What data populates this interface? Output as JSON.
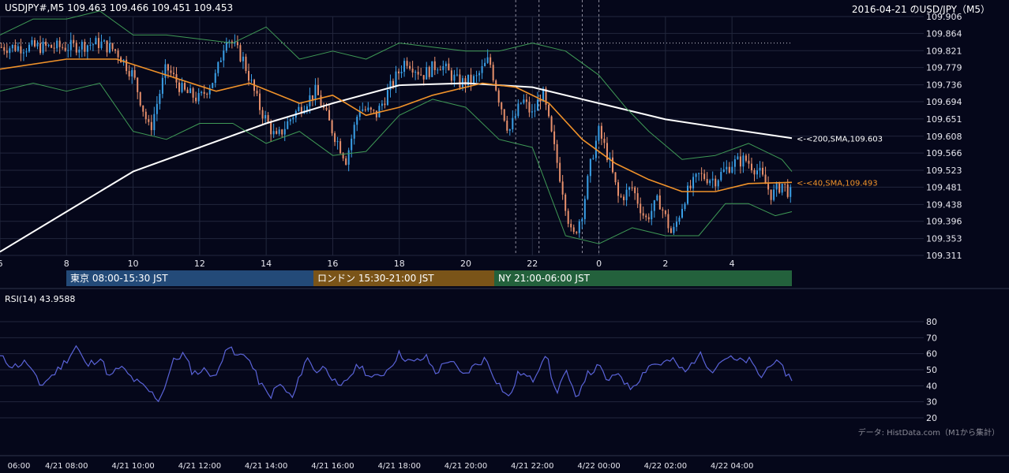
{
  "header": {
    "symbol_line": "USDJPY#,M5 109.463 109.466 109.451 109.453",
    "date_line": "2016-04-21 のUSD/JPY（M5）"
  },
  "sessions": [
    {
      "label": "東京 08:00-15:30 JST",
      "color": "#234a78"
    },
    {
      "label": "ロンドン 15:30-21:00 JST",
      "color": "#7a5418"
    },
    {
      "label": "NY 21:00-06:00 JST",
      "color": "#23613c"
    }
  ],
  "rsi_label": "RSI(14) 43.9588",
  "credit": "データ: HistData.com（M1から集計）",
  "colors": {
    "background": "#05071a",
    "bull": "#3aa0e8",
    "bear": "#e8906c",
    "sma40": "#f0922a",
    "sma200": "#ffffff",
    "bollinger": "#3f9a56",
    "rsi": "#5a63d8",
    "grid": "#22273d"
  },
  "chart_data": [
    {
      "type": "candlestick",
      "title": "USD/JPY M5",
      "y_ticks": [
        "109.906",
        "109.864",
        "109.821",
        "109.779",
        "109.736",
        "109.694",
        "109.651",
        "109.608",
        "109.566",
        "109.523",
        "109.481",
        "109.438",
        "109.396",
        "109.353",
        "109.311"
      ],
      "ylim": [
        109.311,
        109.906
      ],
      "x_ticks": [
        "6",
        "8",
        "10",
        "12",
        "14",
        "16",
        "18",
        "20",
        "22",
        "0",
        "2",
        "4"
      ],
      "x_range_hours": [
        6,
        29.8
      ],
      "time_axis_labels": [
        "06:00",
        "4/21 08:00",
        "4/21 10:00",
        "4/21 12:00",
        "4/21 14:00",
        "4/21 16:00",
        "4/21 18:00",
        "4/21 20:00",
        "4/21 22:00",
        "4/22 00:00",
        "4/22 02:00",
        "4/22 04:00"
      ],
      "reference_line": 109.84,
      "event_lines_hours": [
        21.5,
        22.2,
        23.5,
        24.0
      ],
      "annotations": [
        {
          "text": "<-<200,SMA,109.603",
          "series": "SMA200",
          "value": 109.603
        },
        {
          "text": "<-<40,SMA,109.493",
          "series": "SMA40",
          "value": 109.493
        }
      ],
      "price_path": [
        [
          8.0,
          109.83
        ],
        [
          9.0,
          109.84
        ],
        [
          9.5,
          109.82
        ],
        [
          10.0,
          109.76
        ],
        [
          10.5,
          109.62
        ],
        [
          11.0,
          109.78
        ],
        [
          11.5,
          109.72
        ],
        [
          12.0,
          109.7
        ],
        [
          12.5,
          109.76
        ],
        [
          12.8,
          109.86
        ],
        [
          13.3,
          109.8
        ],
        [
          13.8,
          109.68
        ],
        [
          14.3,
          109.6
        ],
        [
          14.8,
          109.66
        ],
        [
          15.5,
          109.72
        ],
        [
          16.0,
          109.62
        ],
        [
          16.4,
          109.55
        ],
        [
          16.8,
          109.68
        ],
        [
          17.3,
          109.66
        ],
        [
          17.8,
          109.74
        ],
        [
          18.2,
          109.8
        ],
        [
          18.7,
          109.76
        ],
        [
          19.2,
          109.79
        ],
        [
          19.8,
          109.74
        ],
        [
          20.3,
          109.75
        ],
        [
          20.7,
          109.8
        ],
        [
          21.0,
          109.7
        ],
        [
          21.3,
          109.62
        ],
        [
          21.7,
          109.7
        ],
        [
          22.0,
          109.66
        ],
        [
          22.3,
          109.72
        ],
        [
          22.6,
          109.6
        ],
        [
          22.9,
          109.48
        ],
        [
          23.2,
          109.35
        ],
        [
          23.5,
          109.42
        ],
        [
          23.8,
          109.56
        ],
        [
          24.0,
          109.62
        ],
        [
          24.3,
          109.55
        ],
        [
          24.6,
          109.45
        ],
        [
          25.0,
          109.48
        ],
        [
          25.4,
          109.4
        ],
        [
          25.8,
          109.45
        ],
        [
          26.2,
          109.36
        ],
        [
          26.6,
          109.46
        ],
        [
          27.0,
          109.51
        ],
        [
          27.5,
          109.5
        ],
        [
          28.0,
          109.54
        ],
        [
          28.4,
          109.55
        ],
        [
          28.8,
          109.52
        ],
        [
          29.2,
          109.46
        ],
        [
          29.5,
          109.49
        ],
        [
          29.8,
          109.46
        ]
      ],
      "series": [
        {
          "name": "SMA200",
          "points": [
            [
              6.0,
              109.32
            ],
            [
              8.0,
              109.42
            ],
            [
              10.0,
              109.52
            ],
            [
              12.0,
              109.58
            ],
            [
              14.0,
              109.64
            ],
            [
              16.0,
              109.69
            ],
            [
              18.0,
              109.735
            ],
            [
              20.0,
              109.74
            ],
            [
              22.0,
              109.73
            ],
            [
              24.0,
              109.69
            ],
            [
              26.0,
              109.65
            ],
            [
              28.0,
              109.625
            ],
            [
              29.8,
              109.603
            ]
          ]
        },
        {
          "name": "SMA40",
          "points": [
            [
              6.0,
              109.775
            ],
            [
              8.0,
              109.8
            ],
            [
              9.5,
              109.8
            ],
            [
              11.0,
              109.76
            ],
            [
              12.5,
              109.72
            ],
            [
              13.5,
              109.74
            ],
            [
              15.0,
              109.69
            ],
            [
              16.0,
              109.71
            ],
            [
              17.0,
              109.66
            ],
            [
              18.0,
              109.68
            ],
            [
              19.0,
              109.71
            ],
            [
              20.5,
              109.74
            ],
            [
              21.5,
              109.73
            ],
            [
              22.5,
              109.69
            ],
            [
              23.5,
              109.6
            ],
            [
              24.5,
              109.54
            ],
            [
              25.5,
              109.5
            ],
            [
              26.5,
              109.47
            ],
            [
              27.5,
              109.47
            ],
            [
              28.5,
              109.49
            ],
            [
              29.8,
              109.493
            ]
          ]
        },
        {
          "name": "BB-upper",
          "points": [
            [
              6.0,
              109.86
            ],
            [
              7.0,
              109.9
            ],
            [
              8.0,
              109.9
            ],
            [
              9.0,
              109.92
            ],
            [
              10.0,
              109.86
            ],
            [
              11.0,
              109.86
            ],
            [
              12.0,
              109.85
            ],
            [
              13.0,
              109.84
            ],
            [
              14.0,
              109.88
            ],
            [
              15.0,
              109.8
            ],
            [
              16.0,
              109.82
            ],
            [
              17.0,
              109.8
            ],
            [
              18.0,
              109.84
            ],
            [
              19.0,
              109.83
            ],
            [
              20.0,
              109.82
            ],
            [
              21.0,
              109.82
            ],
            [
              22.0,
              109.84
            ],
            [
              23.0,
              109.82
            ],
            [
              24.0,
              109.76
            ],
            [
              24.8,
              109.68
            ],
            [
              25.5,
              109.62
            ],
            [
              26.5,
              109.55
            ],
            [
              27.5,
              109.56
            ],
            [
              28.5,
              109.59
            ],
            [
              29.5,
              109.55
            ],
            [
              29.8,
              109.52
            ]
          ]
        },
        {
          "name": "BB-lower",
          "points": [
            [
              6.0,
              109.72
            ],
            [
              7.0,
              109.74
            ],
            [
              8.0,
              109.72
            ],
            [
              9.0,
              109.74
            ],
            [
              10.0,
              109.62
            ],
            [
              11.0,
              109.6
            ],
            [
              12.0,
              109.64
            ],
            [
              13.0,
              109.64
            ],
            [
              14.0,
              109.59
            ],
            [
              15.0,
              109.62
            ],
            [
              16.0,
              109.56
            ],
            [
              17.0,
              109.57
            ],
            [
              18.0,
              109.66
            ],
            [
              19.0,
              109.7
            ],
            [
              20.0,
              109.68
            ],
            [
              21.0,
              109.6
            ],
            [
              22.0,
              109.58
            ],
            [
              23.0,
              109.36
            ],
            [
              24.0,
              109.34
            ],
            [
              25.0,
              109.38
            ],
            [
              26.0,
              109.36
            ],
            [
              27.0,
              109.36
            ],
            [
              27.8,
              109.44
            ],
            [
              28.5,
              109.44
            ],
            [
              29.3,
              109.41
            ],
            [
              29.8,
              109.42
            ]
          ]
        }
      ]
    },
    {
      "type": "line",
      "title": "RSI(14) 43.9588",
      "y_ticks": [
        "80",
        "70",
        "60",
        "50",
        "40",
        "30",
        "20"
      ],
      "ylim": [
        20,
        80
      ],
      "series": [
        {
          "name": "RSI(14)",
          "points": [
            [
              6.0,
              58
            ],
            [
              6.4,
              52
            ],
            [
              6.8,
              55
            ],
            [
              7.2,
              40
            ],
            [
              7.6,
              47
            ],
            [
              8.0,
              56
            ],
            [
              8.3,
              65
            ],
            [
              8.6,
              52
            ],
            [
              9.0,
              58
            ],
            [
              9.3,
              45
            ],
            [
              9.6,
              52
            ],
            [
              10.0,
              44
            ],
            [
              10.4,
              38
            ],
            [
              10.8,
              31
            ],
            [
              11.2,
              55
            ],
            [
              11.5,
              60
            ],
            [
              11.8,
              48
            ],
            [
              12.2,
              50
            ],
            [
              12.5,
              45
            ],
            [
              12.8,
              66
            ],
            [
              13.1,
              58
            ],
            [
              13.4,
              60
            ],
            [
              13.8,
              42
            ],
            [
              14.1,
              33
            ],
            [
              14.4,
              41
            ],
            [
              14.8,
              32
            ],
            [
              15.2,
              58
            ],
            [
              15.5,
              49
            ],
            [
              15.8,
              52
            ],
            [
              16.2,
              37
            ],
            [
              16.5,
              46
            ],
            [
              16.8,
              53
            ],
            [
              17.2,
              44
            ],
            [
              17.6,
              49
            ],
            [
              18.0,
              60
            ],
            [
              18.4,
              54
            ],
            [
              18.8,
              58
            ],
            [
              19.1,
              48
            ],
            [
              19.5,
              57
            ],
            [
              19.9,
              46
            ],
            [
              20.3,
              53
            ],
            [
              20.6,
              57
            ],
            [
              20.9,
              44
            ],
            [
              21.3,
              32
            ],
            [
              21.6,
              49
            ],
            [
              22.0,
              43
            ],
            [
              22.4,
              61
            ],
            [
              22.7,
              35
            ],
            [
              23.0,
              49
            ],
            [
              23.3,
              32
            ],
            [
              23.6,
              46
            ],
            [
              24.0,
              52
            ],
            [
              24.3,
              42
            ],
            [
              24.6,
              49
            ],
            [
              24.9,
              38
            ],
            [
              25.2,
              44
            ],
            [
              25.5,
              53
            ],
            [
              25.9,
              54
            ],
            [
              26.2,
              56
            ],
            [
              26.6,
              48
            ],
            [
              27.0,
              60
            ],
            [
              27.4,
              50
            ],
            [
              27.8,
              58
            ],
            [
              28.2,
              55
            ],
            [
              28.5,
              56
            ],
            [
              28.9,
              45
            ],
            [
              29.2,
              56
            ],
            [
              29.5,
              51
            ],
            [
              29.8,
              44
            ]
          ]
        }
      ]
    }
  ]
}
